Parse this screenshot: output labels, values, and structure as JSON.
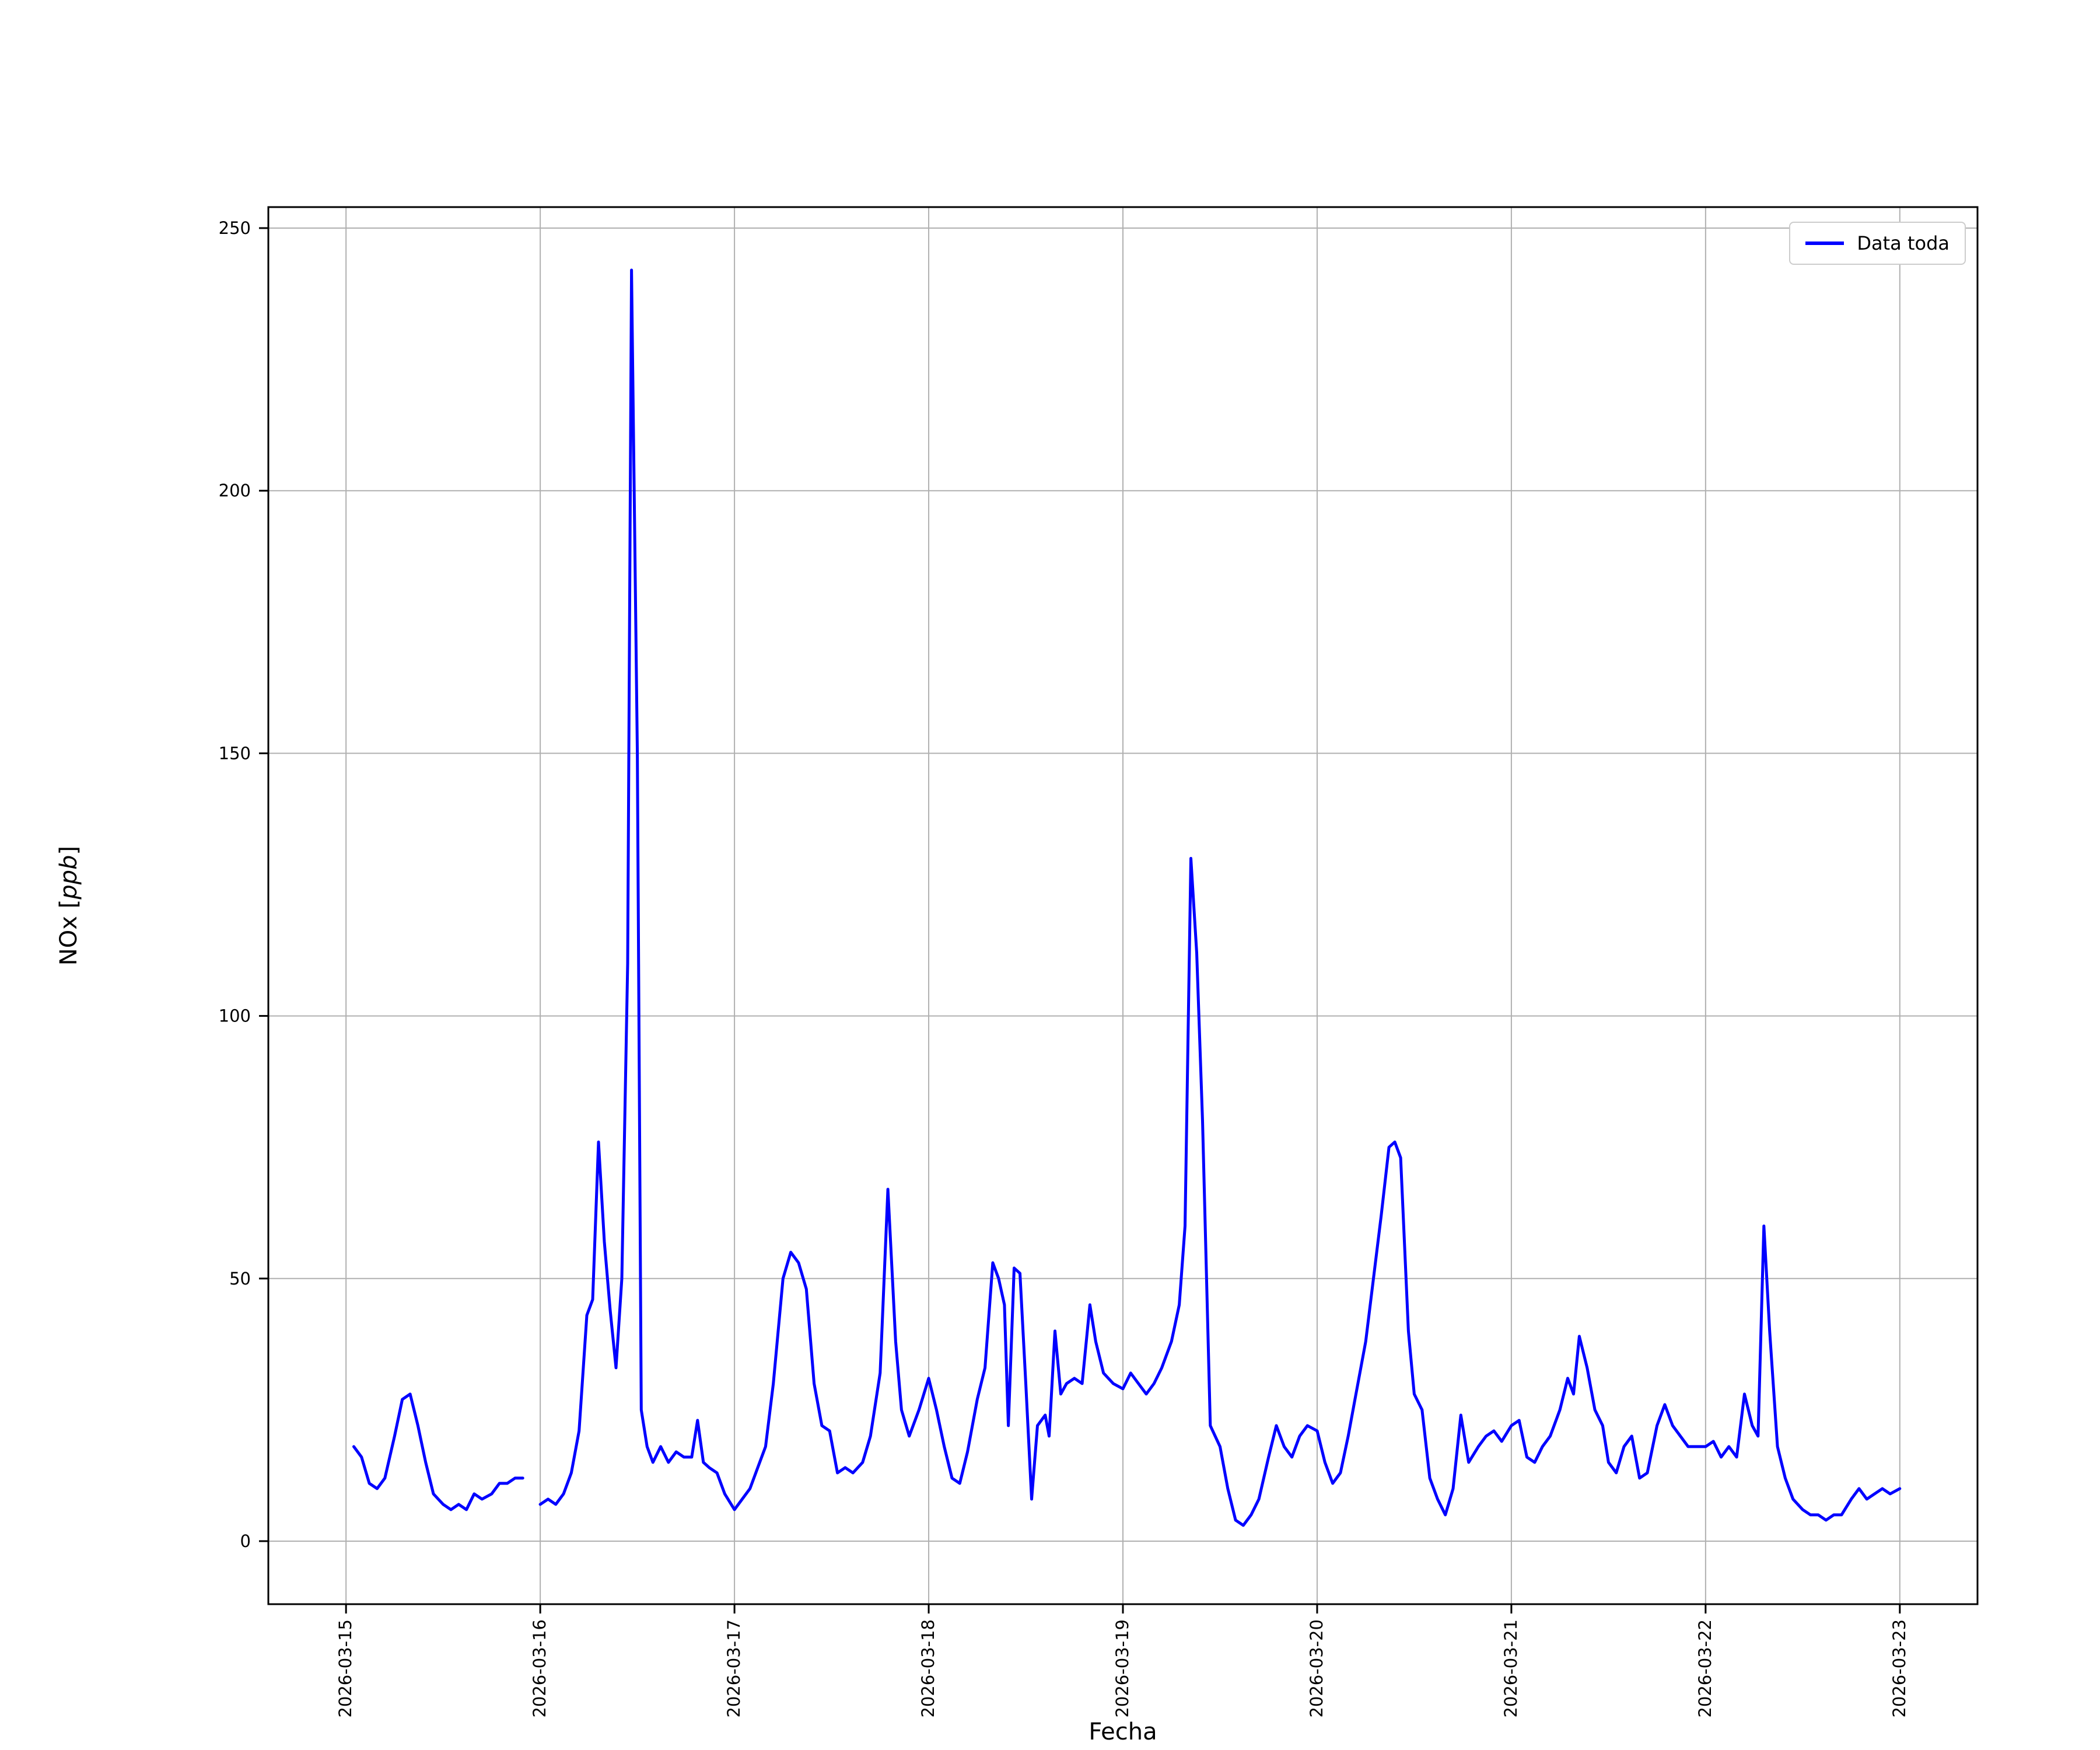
{
  "chart": {
    "xlabel": "Fecha",
    "ylabel_prefix": "NOx [",
    "ylabel_italic": "ppb",
    "ylabel_suffix": "]",
    "legend_label": "Data toda",
    "line_color": "#0000ff",
    "grid_color": "#b0b0b0",
    "spine_color": "#000000",
    "background_color": "#ffffff"
  },
  "chart_data": {
    "type": "line",
    "title": "",
    "xlabel": "Fecha",
    "ylabel": "NOx [ppb]",
    "legend": [
      "Data toda"
    ],
    "legend_position": "upper right",
    "grid": true,
    "x_unit": "days since 2026-03-15",
    "x_tick_labels": [
      "2026-03-15",
      "2026-03-16",
      "2026-03-17",
      "2026-03-18",
      "2026-03-19",
      "2026-03-20",
      "2026-03-21",
      "2026-03-22",
      "2026-03-23"
    ],
    "y_ticks": [
      0,
      50,
      100,
      150,
      200,
      250
    ],
    "ylim": [
      -12,
      254
    ],
    "xlim_days": [
      -0.4,
      8.4
    ],
    "series": [
      {
        "name": "Data toda",
        "color": "#0000ff",
        "points": [
          [
            0.04,
            18
          ],
          [
            0.08,
            16
          ],
          [
            0.12,
            11
          ],
          [
            0.16,
            10
          ],
          [
            0.2,
            12
          ],
          [
            0.25,
            20
          ],
          [
            0.29,
            27
          ],
          [
            0.33,
            28
          ],
          [
            0.37,
            22
          ],
          [
            0.41,
            15
          ],
          [
            0.45,
            9
          ],
          [
            0.5,
            7
          ],
          [
            0.54,
            6
          ],
          [
            0.58,
            7
          ],
          [
            0.62,
            6
          ],
          [
            0.66,
            9
          ],
          [
            0.7,
            8
          ],
          [
            0.75,
            9
          ],
          [
            0.79,
            11
          ],
          [
            0.83,
            11
          ],
          [
            0.87,
            12
          ],
          [
            0.91,
            12
          ],
          [
            0.95,
            null
          ],
          [
            1,
            7
          ],
          [
            1.04,
            8
          ],
          [
            1.08,
            7
          ],
          [
            1.12,
            9
          ],
          [
            1.16,
            13
          ],
          [
            1.2,
            21
          ],
          [
            1.24,
            43
          ],
          [
            1.27,
            46
          ],
          [
            1.3,
            76
          ],
          [
            1.33,
            57
          ],
          [
            1.36,
            44
          ],
          [
            1.39,
            33
          ],
          [
            1.42,
            50
          ],
          [
            1.45,
            110
          ],
          [
            1.47,
            242
          ],
          [
            1.5,
            150
          ],
          [
            1.52,
            25
          ],
          [
            1.55,
            18
          ],
          [
            1.58,
            15
          ],
          [
            1.62,
            18
          ],
          [
            1.66,
            15
          ],
          [
            1.7,
            17
          ],
          [
            1.74,
            16
          ],
          [
            1.78,
            16
          ],
          [
            1.81,
            23
          ],
          [
            1.84,
            15
          ],
          [
            1.87,
            14
          ],
          [
            1.91,
            13
          ],
          [
            1.95,
            9
          ],
          [
            2,
            6
          ],
          [
            2.04,
            8
          ],
          [
            2.08,
            10
          ],
          [
            2.12,
            14
          ],
          [
            2.16,
            18
          ],
          [
            2.2,
            30
          ],
          [
            2.25,
            50
          ],
          [
            2.29,
            55
          ],
          [
            2.33,
            53
          ],
          [
            2.37,
            48
          ],
          [
            2.41,
            30
          ],
          [
            2.45,
            22
          ],
          [
            2.49,
            21
          ],
          [
            2.53,
            13
          ],
          [
            2.57,
            14
          ],
          [
            2.61,
            13
          ],
          [
            2.66,
            15
          ],
          [
            2.7,
            20
          ],
          [
            2.75,
            32
          ],
          [
            2.79,
            67
          ],
          [
            2.83,
            38
          ],
          [
            2.86,
            25
          ],
          [
            2.9,
            20
          ],
          [
            2.95,
            25
          ],
          [
            3,
            31
          ],
          [
            3.04,
            25
          ],
          [
            3.08,
            18
          ],
          [
            3.12,
            12
          ],
          [
            3.16,
            11
          ],
          [
            3.2,
            17
          ],
          [
            3.25,
            27
          ],
          [
            3.29,
            33
          ],
          [
            3.33,
            53
          ],
          [
            3.36,
            50
          ],
          [
            3.39,
            45
          ],
          [
            3.41,
            22
          ],
          [
            3.44,
            52
          ],
          [
            3.47,
            51
          ],
          [
            3.5,
            30
          ],
          [
            3.53,
            8
          ],
          [
            3.56,
            22
          ],
          [
            3.6,
            24
          ],
          [
            3.62,
            20
          ],
          [
            3.65,
            40
          ],
          [
            3.68,
            28
          ],
          [
            3.71,
            30
          ],
          [
            3.75,
            31
          ],
          [
            3.79,
            30
          ],
          [
            3.83,
            45
          ],
          [
            3.86,
            38
          ],
          [
            3.9,
            32
          ],
          [
            3.95,
            30
          ],
          [
            4,
            29
          ],
          [
            4.04,
            32
          ],
          [
            4.08,
            30
          ],
          [
            4.12,
            28
          ],
          [
            4.16,
            30
          ],
          [
            4.2,
            33
          ],
          [
            4.25,
            38
          ],
          [
            4.29,
            45
          ],
          [
            4.32,
            60
          ],
          [
            4.35,
            130
          ],
          [
            4.38,
            112
          ],
          [
            4.41,
            80
          ],
          [
            4.45,
            22
          ],
          [
            4.5,
            18
          ],
          [
            4.54,
            10
          ],
          [
            4.58,
            4
          ],
          [
            4.62,
            3
          ],
          [
            4.66,
            5
          ],
          [
            4.7,
            8
          ],
          [
            4.75,
            16
          ],
          [
            4.79,
            22
          ],
          [
            4.83,
            18
          ],
          [
            4.87,
            16
          ],
          [
            4.91,
            20
          ],
          [
            4.95,
            22
          ],
          [
            5,
            21
          ],
          [
            5.04,
            15
          ],
          [
            5.08,
            11
          ],
          [
            5.12,
            13
          ],
          [
            5.16,
            20
          ],
          [
            5.2,
            28
          ],
          [
            5.25,
            38
          ],
          [
            5.29,
            50
          ],
          [
            5.33,
            62
          ],
          [
            5.37,
            75
          ],
          [
            5.4,
            76
          ],
          [
            5.43,
            73
          ],
          [
            5.47,
            40
          ],
          [
            5.5,
            28
          ],
          [
            5.54,
            25
          ],
          [
            5.58,
            12
          ],
          [
            5.62,
            8
          ],
          [
            5.66,
            5
          ],
          [
            5.7,
            10
          ],
          [
            5.74,
            24
          ],
          [
            5.78,
            15
          ],
          [
            5.83,
            18
          ],
          [
            5.87,
            20
          ],
          [
            5.91,
            21
          ],
          [
            5.95,
            19
          ],
          [
            6,
            22
          ],
          [
            6.04,
            23
          ],
          [
            6.08,
            16
          ],
          [
            6.12,
            15
          ],
          [
            6.16,
            18
          ],
          [
            6.2,
            20
          ],
          [
            6.25,
            25
          ],
          [
            6.29,
            31
          ],
          [
            6.32,
            28
          ],
          [
            6.35,
            39
          ],
          [
            6.39,
            33
          ],
          [
            6.43,
            25
          ],
          [
            6.47,
            22
          ],
          [
            6.5,
            15
          ],
          [
            6.54,
            13
          ],
          [
            6.58,
            18
          ],
          [
            6.62,
            20
          ],
          [
            6.66,
            12
          ],
          [
            6.7,
            13
          ],
          [
            6.75,
            22
          ],
          [
            6.79,
            26
          ],
          [
            6.83,
            22
          ],
          [
            6.87,
            20
          ],
          [
            6.91,
            18
          ],
          [
            6.95,
            18
          ],
          [
            7,
            18
          ],
          [
            7.04,
            19
          ],
          [
            7.08,
            16
          ],
          [
            7.12,
            18
          ],
          [
            7.16,
            16
          ],
          [
            7.2,
            28
          ],
          [
            7.24,
            22
          ],
          [
            7.27,
            20
          ],
          [
            7.3,
            60
          ],
          [
            7.33,
            40
          ],
          [
            7.37,
            18
          ],
          [
            7.41,
            12
          ],
          [
            7.45,
            8
          ],
          [
            7.5,
            6
          ],
          [
            7.54,
            5
          ],
          [
            7.58,
            5
          ],
          [
            7.62,
            4
          ],
          [
            7.66,
            5
          ],
          [
            7.7,
            5
          ],
          [
            7.75,
            8
          ],
          [
            7.79,
            10
          ],
          [
            7.83,
            8
          ],
          [
            7.87,
            9
          ],
          [
            7.91,
            10
          ],
          [
            7.95,
            9
          ],
          [
            8,
            10
          ]
        ]
      }
    ]
  }
}
